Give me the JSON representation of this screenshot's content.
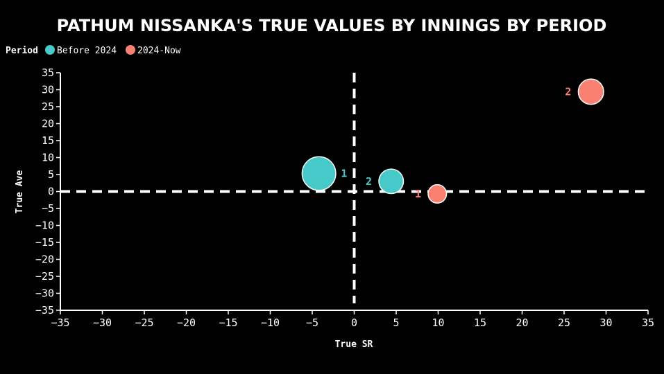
{
  "chart_data": {
    "type": "scatter",
    "title": "PATHUM NISSANKA'S TRUE VALUES BY INNINGS BY PERIOD",
    "xlabel": "True SR",
    "ylabel": "True Ave",
    "xlim": [
      -35,
      35
    ],
    "ylim": [
      -35,
      35
    ],
    "xticks": [
      -35,
      -30,
      -25,
      -20,
      -15,
      -10,
      -5,
      0,
      5,
      10,
      15,
      20,
      25,
      30,
      35
    ],
    "yticks": [
      35,
      30,
      25,
      20,
      15,
      10,
      5,
      0,
      -5,
      -10,
      -15,
      -20,
      -25,
      -30,
      -35
    ],
    "legend": {
      "title": "Period",
      "placement": "top-left",
      "entries": [
        {
          "label": "Before 2024",
          "color": "#47c9c9"
        },
        {
          "label": "2024-Now",
          "color": "#fa8072"
        }
      ]
    },
    "reference_lines": {
      "x": 0,
      "y": 0,
      "style": "dashed",
      "color": "#ffffff"
    },
    "series": [
      {
        "name": "Before 2024",
        "color": "#47c9c9",
        "points": [
          {
            "label": "1",
            "x": -4.2,
            "y": 5.3,
            "size": 3.0
          },
          {
            "label": "2",
            "x": 4.4,
            "y": 3.0,
            "size": 1.6
          }
        ]
      },
      {
        "name": "2024-Now",
        "color": "#fa8072",
        "points": [
          {
            "label": "1",
            "x": 9.9,
            "y": -0.7,
            "size": 0.9
          },
          {
            "label": "2",
            "x": 28.2,
            "y": 29.4,
            "size": 1.7
          }
        ]
      }
    ]
  }
}
